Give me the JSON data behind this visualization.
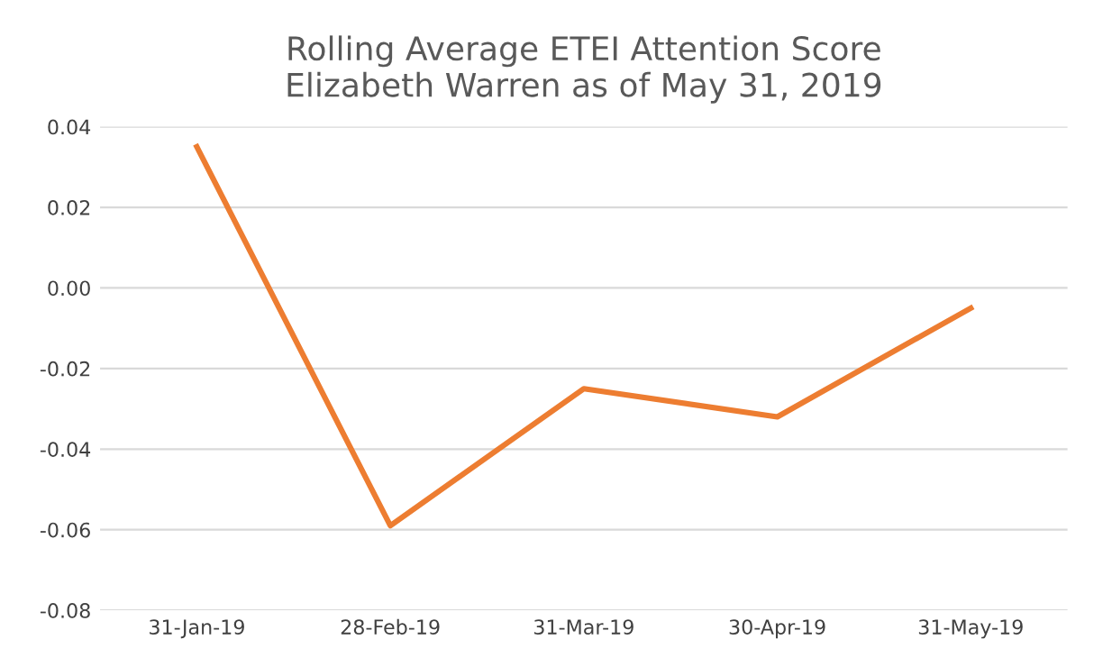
{
  "chart_data": {
    "type": "line",
    "title": "Rolling Average ETEI Attention Score\nElizabeth Warren as of May 31, 2019",
    "categories": [
      "31-Jan-19",
      "28-Feb-19",
      "31-Mar-19",
      "30-Apr-19",
      "31-May-19"
    ],
    "series": [
      {
        "color": "#ed7d31",
        "values": [
          0.035,
          -0.059,
          -0.025,
          -0.032,
          -0.005
        ]
      }
    ],
    "ylim": [
      -0.08,
      0.04
    ],
    "yticks": [
      {
        "value": -0.08,
        "label": "-0.08"
      },
      {
        "value": -0.06,
        "label": "-0.06"
      },
      {
        "value": -0.04,
        "label": "-0.04"
      },
      {
        "value": -0.02,
        "label": "-0.02"
      },
      {
        "value": 0,
        "label": "0.00"
      },
      {
        "value": 0.02,
        "label": "0.02"
      },
      {
        "value": 0.04,
        "label": "0.04"
      }
    ],
    "grid": "y",
    "marker": "none",
    "line_style": "solid",
    "legend": false
  }
}
